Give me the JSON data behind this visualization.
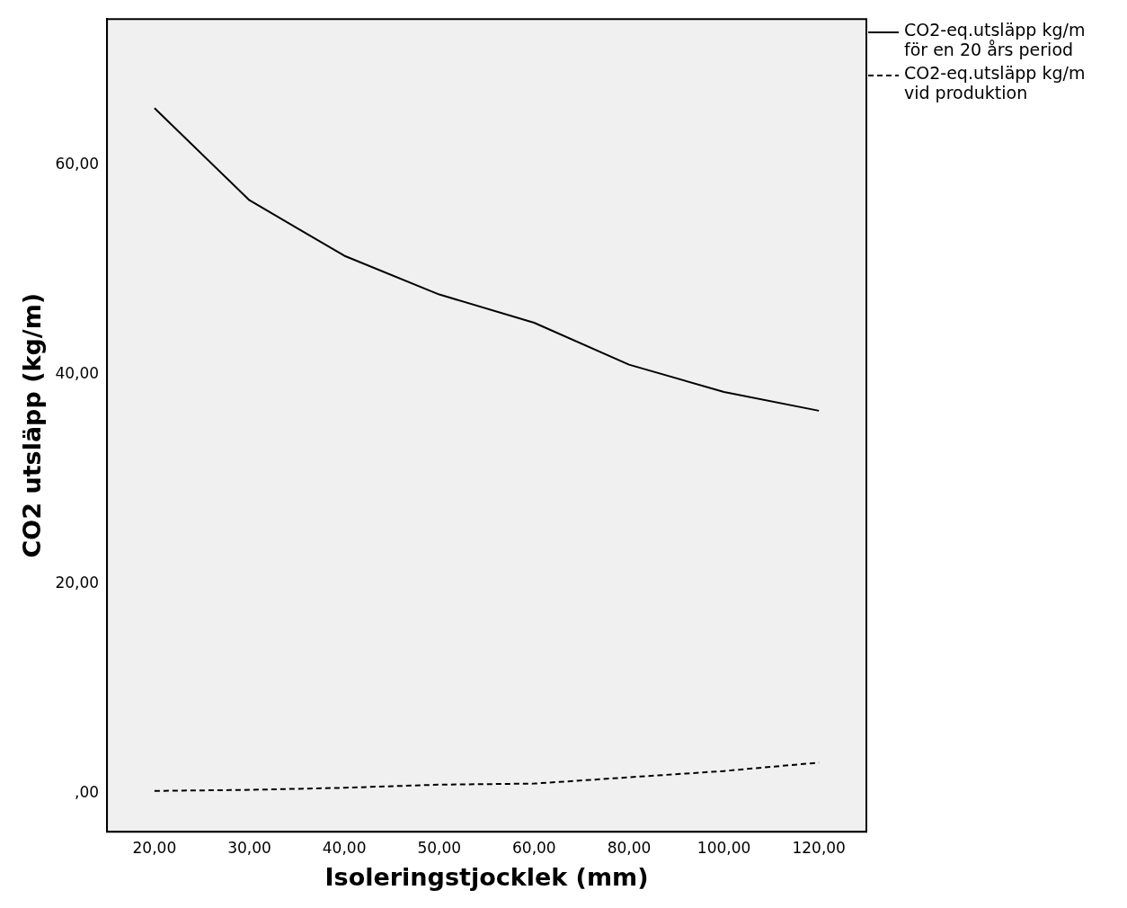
{
  "chart_data": {
    "type": "line",
    "xlabel": "Isoleringstjocklek (mm)",
    "ylabel": "CO2 utsläpp (kg/m)",
    "categories": [
      "20,00",
      "30,00",
      "40,00",
      "50,00",
      "60,00",
      "80,00",
      "100,00",
      "120,00"
    ],
    "series": [
      {
        "name": "CO2-eq.utsläpp kg/m för en 20 års period",
        "color": "#000000",
        "line_style": "solid",
        "values": [
          65.4,
          56.6,
          51.3,
          47.6,
          44.9,
          40.9,
          38.3,
          36.5
        ]
      },
      {
        "name": "CO2-eq.utsläpp kg/m vid produktion",
        "color": "#000000",
        "line_style": "dashed",
        "values": [
          0.2,
          0.3,
          0.5,
          0.8,
          0.9,
          1.5,
          2.1,
          2.9
        ]
      }
    ],
    "ylim": [
      -3.7,
      73.9
    ],
    "yticks": [
      {
        "value": 0,
        "label": ",00"
      },
      {
        "value": 20,
        "label": "20,00"
      },
      {
        "value": 40,
        "label": "40,00"
      },
      {
        "value": 60,
        "label": "60,00"
      }
    ],
    "grid": false,
    "legend": "top right",
    "marker": "none"
  }
}
